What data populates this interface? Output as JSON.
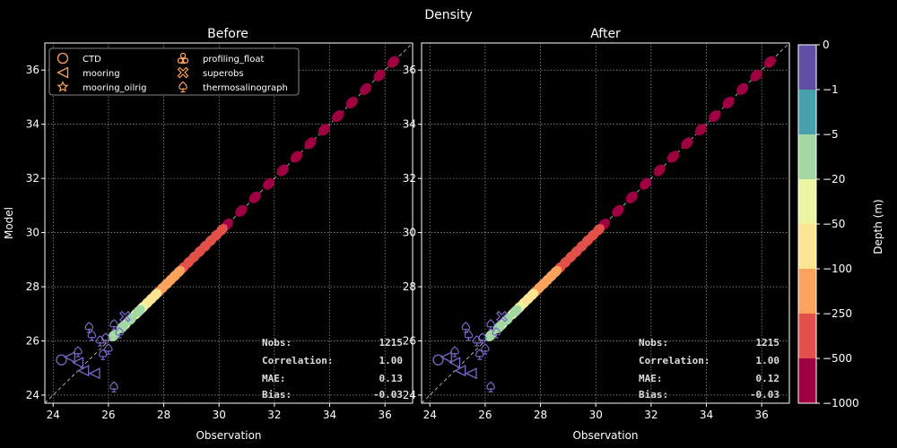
{
  "title": "Density",
  "chart_data": [
    {
      "type": "scatter",
      "title": "Before",
      "xlabel": "Observation",
      "ylabel": "Model",
      "xlim": [
        23.7,
        37.0
      ],
      "ylim": [
        23.7,
        37.0
      ],
      "xticks": [
        "24",
        "26",
        "28",
        "30",
        "32",
        "34",
        "36"
      ],
      "yticks": [
        "24",
        "26",
        "28",
        "30",
        "32",
        "34",
        "36"
      ],
      "grid": true,
      "legend_placement": "top-left",
      "stats": {
        "nobs_label": "Nobs:",
        "nobs": "1215",
        "corr_label": "Correlation:",
        "corr": "1.00",
        "mae_label": "MAE:",
        "mae": "0.13",
        "bias_label": "Bias:",
        "bias": "-0.03"
      }
    },
    {
      "type": "scatter",
      "title": "After",
      "xlabel": "Observation",
      "ylabel": "",
      "xlim": [
        23.7,
        37.0
      ],
      "ylim": [
        23.7,
        37.0
      ],
      "xticks": [
        "24",
        "26",
        "28",
        "30",
        "32",
        "34",
        "36"
      ],
      "yticks": [
        "24",
        "26",
        "28",
        "30",
        "32",
        "34",
        "36"
      ],
      "grid": true,
      "stats": {
        "nobs_label": "Nobs:",
        "nobs": "1215",
        "corr_label": "Correlation:",
        "corr": "1.00",
        "mae_label": "MAE:",
        "mae": "0.12",
        "bias_label": "Bias:",
        "bias": "-0.03"
      }
    }
  ],
  "legend": [
    {
      "label": "CTD",
      "icon": "circle-icon"
    },
    {
      "label": "mooring",
      "icon": "triangle-left-icon"
    },
    {
      "label": "mooring_oilrig",
      "icon": "star-icon"
    },
    {
      "label": "profiling_float",
      "icon": "club-icon"
    },
    {
      "label": "superobs",
      "icon": "x-icon"
    },
    {
      "label": "thermosalinograph",
      "icon": "spade-icon"
    }
  ],
  "colorbar": {
    "label": "Depth (m)",
    "ticks": [
      "0",
      "−1",
      "−5",
      "−20",
      "−50",
      "−100",
      "−250",
      "−500",
      "−1000"
    ],
    "colors": [
      "#5e4fa2",
      "#46a0ae",
      "#a1d8a4",
      "#ecf5a2",
      "#fee593",
      "#fba35d",
      "#e15049",
      "#9e0142"
    ]
  },
  "series": [
    {
      "color": "#9e0142",
      "x": [
        30.3,
        30.8,
        31.3,
        31.8,
        32.3,
        32.8,
        33.3,
        33.8,
        34.3,
        34.8,
        35.3,
        35.8,
        36.3
      ]
    },
    {
      "color": "#e15049",
      "x": [
        28.7,
        28.9,
        29.1,
        29.3,
        29.5,
        29.7,
        29.9,
        30.1
      ]
    },
    {
      "color": "#fba35d",
      "x": [
        27.8,
        27.95,
        28.1,
        28.25,
        28.4,
        28.55
      ]
    },
    {
      "color": "#fee593",
      "x": [
        27.1,
        27.25,
        27.4,
        27.55,
        27.7
      ]
    },
    {
      "color": "#ecf5a2",
      "x": [
        26.6,
        26.8,
        27.0,
        27.2
      ]
    },
    {
      "color": "#a1d8a4",
      "x": [
        26.2,
        26.5,
        26.8,
        27.1
      ]
    }
  ],
  "purple_points": [
    {
      "x": 24.3,
      "y": 25.3,
      "m": "circle"
    },
    {
      "x": 24.6,
      "y": 25.4,
      "m": "triangle"
    },
    {
      "x": 24.9,
      "y": 25.2,
      "m": "triangle"
    },
    {
      "x": 25.1,
      "y": 24.9,
      "m": "triangle"
    },
    {
      "x": 25.5,
      "y": 24.8,
      "m": "triangle"
    },
    {
      "x": 25.8,
      "y": 25.5,
      "m": "spade"
    },
    {
      "x": 25.4,
      "y": 26.2,
      "m": "spade"
    },
    {
      "x": 25.3,
      "y": 26.5,
      "m": "spade"
    },
    {
      "x": 26.2,
      "y": 24.3,
      "m": "spade"
    },
    {
      "x": 25.7,
      "y": 26.0,
      "m": "spade"
    },
    {
      "x": 26.4,
      "y": 26.3,
      "m": "spade"
    },
    {
      "x": 26.2,
      "y": 26.6,
      "m": "spade"
    },
    {
      "x": 26.0,
      "y": 25.7,
      "m": "spade"
    },
    {
      "x": 26.6,
      "y": 26.9,
      "m": "x"
    },
    {
      "x": 24.9,
      "y": 25.6,
      "m": "spade"
    },
    {
      "x": 25.9,
      "y": 26.1,
      "m": "spade"
    }
  ]
}
